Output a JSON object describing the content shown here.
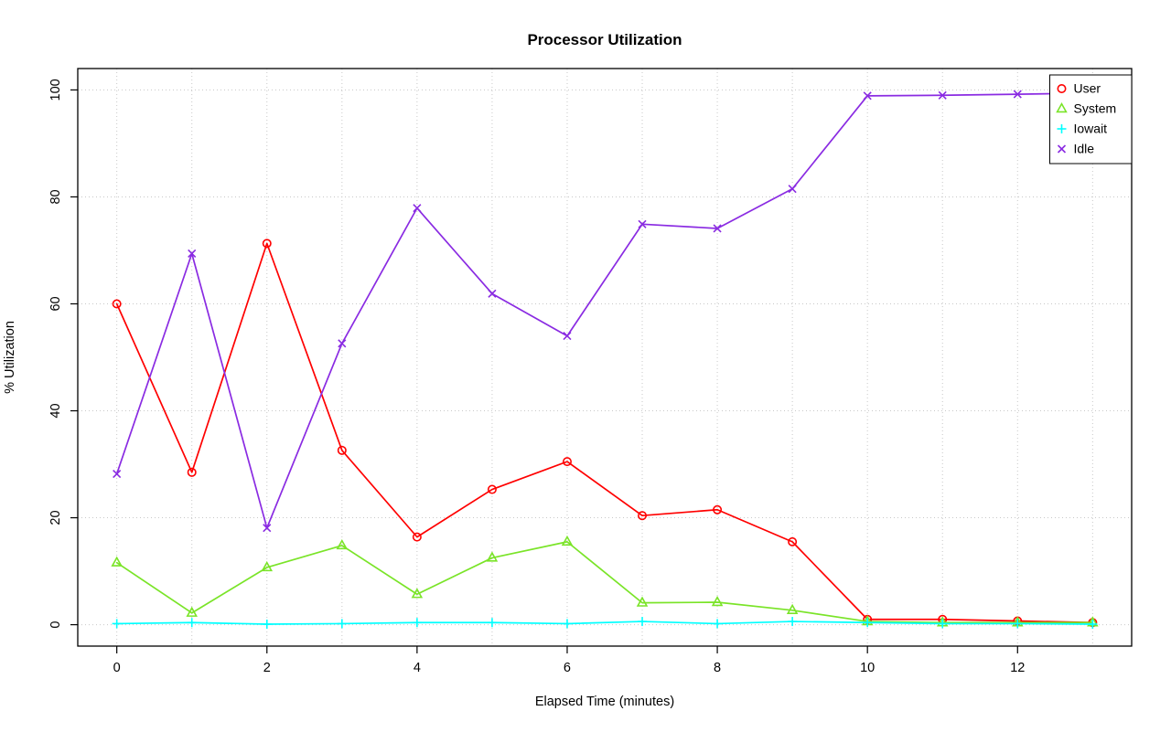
{
  "chart_data": {
    "type": "line",
    "title": "Processor Utilization",
    "xlabel": "Elapsed Time (minutes)",
    "ylabel": "% Utilization",
    "x": [
      0,
      1,
      2,
      3,
      4,
      5,
      6,
      7,
      8,
      9,
      10,
      11,
      12,
      13
    ],
    "series": [
      {
        "name": "User",
        "color": "#ff0000",
        "marker": "circle",
        "values": [
          60.0,
          28.5,
          71.3,
          32.6,
          16.4,
          25.3,
          30.5,
          20.4,
          21.5,
          15.5,
          1.0,
          1.0,
          0.7,
          0.4
        ]
      },
      {
        "name": "System",
        "color": "#7ae428",
        "marker": "triangle",
        "values": [
          11.6,
          2.2,
          10.7,
          14.8,
          5.7,
          12.5,
          15.5,
          4.1,
          4.2,
          2.7,
          0.6,
          0.4,
          0.4,
          0.4
        ]
      },
      {
        "name": "Iowait",
        "color": "#00ffff",
        "marker": "plus",
        "values": [
          0.2,
          0.4,
          0.1,
          0.2,
          0.4,
          0.4,
          0.2,
          0.6,
          0.2,
          0.6,
          0.4,
          0.2,
          0.2,
          0.1
        ]
      },
      {
        "name": "Idle",
        "color": "#8a2be2",
        "marker": "x",
        "values": [
          28.2,
          69.4,
          18.1,
          52.6,
          77.9,
          61.9,
          54.0,
          74.9,
          74.1,
          81.5,
          98.9,
          99.0,
          99.2,
          99.4
        ]
      }
    ],
    "xticks": [
      0,
      2,
      4,
      6,
      8,
      10,
      12
    ],
    "yticks": [
      0,
      20,
      40,
      60,
      80,
      100
    ],
    "xlim": [
      0,
      13
    ],
    "ylim": [
      0,
      100
    ],
    "grid": true,
    "grid_color": "#c8c8c8",
    "legend_position": "top-right",
    "legend_labels": [
      "User",
      "System",
      "Iowait",
      "Idle"
    ]
  }
}
